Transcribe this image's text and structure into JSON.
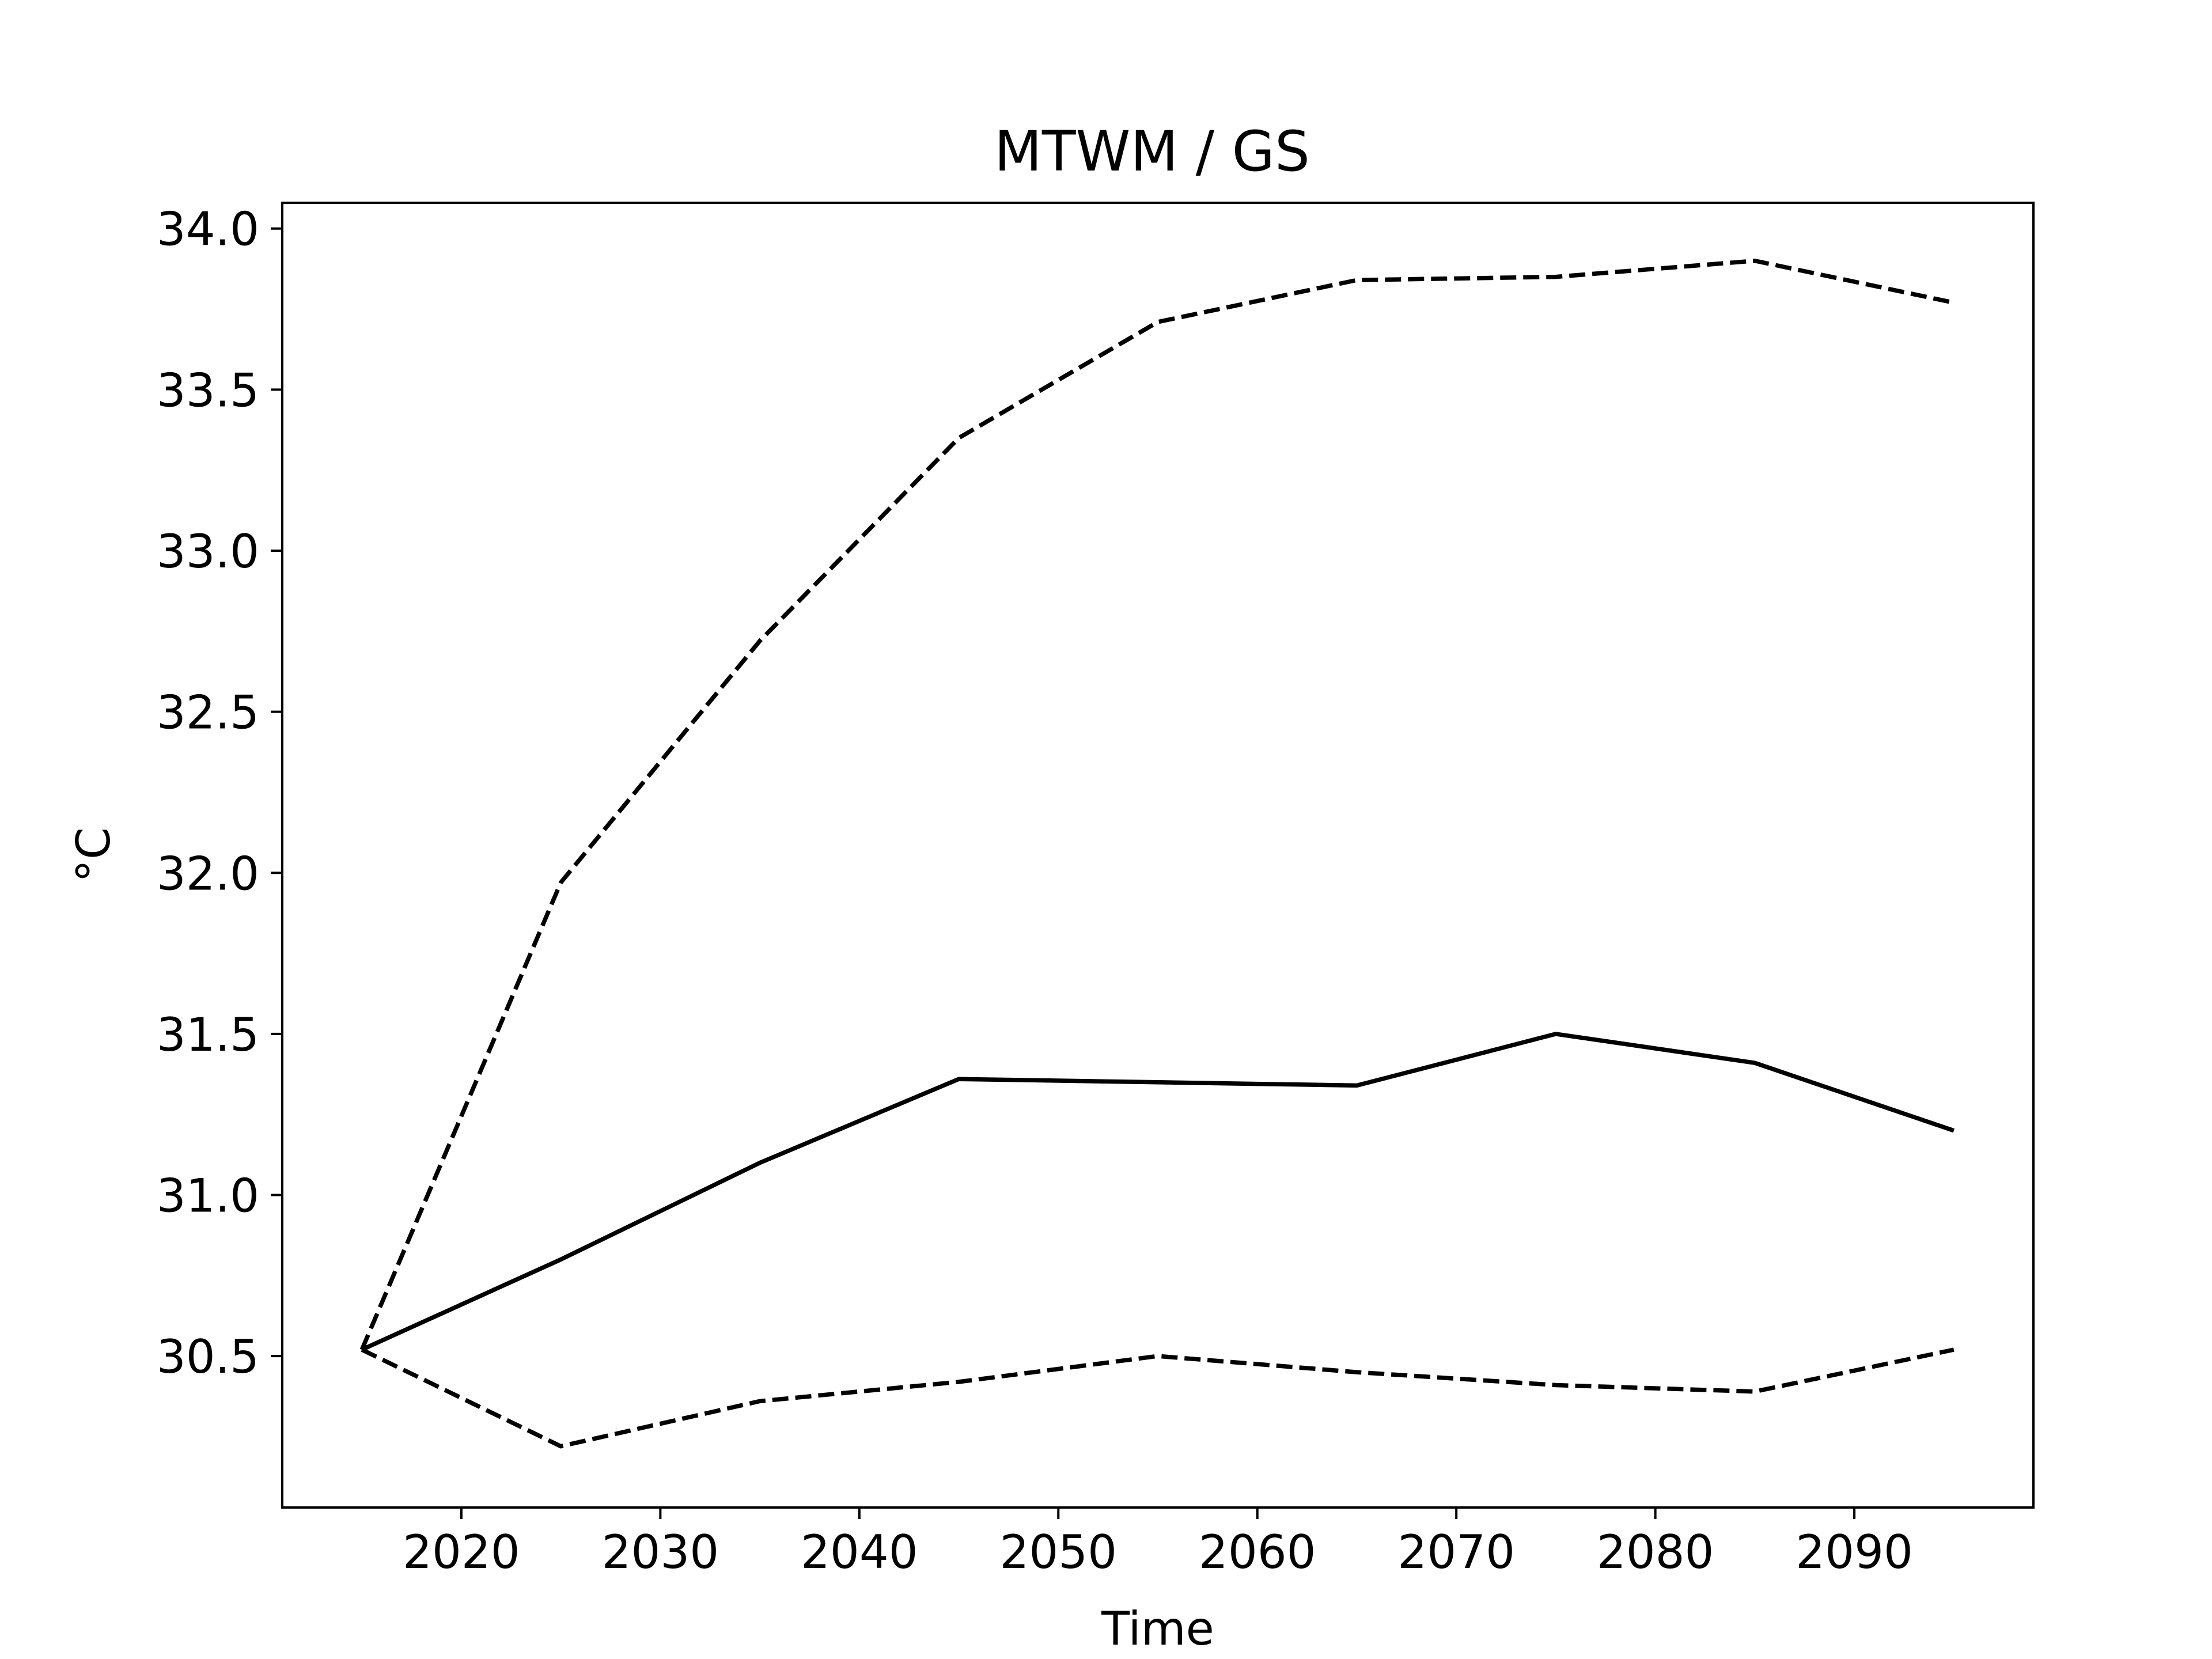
{
  "chart_data": {
    "type": "line",
    "title": "MTWM / GS",
    "xlabel": "Time",
    "ylabel": "°C",
    "xlim": [
      2011,
      2099
    ],
    "ylim": [
      30.03,
      34.08
    ],
    "x_ticks": [
      2020,
      2030,
      2040,
      2050,
      2060,
      2070,
      2080,
      2090
    ],
    "y_ticks": [
      30.5,
      31.0,
      31.5,
      32.0,
      32.5,
      33.0,
      33.5,
      34.0
    ],
    "x_tick_labels": [
      "2020",
      "2030",
      "2040",
      "2050",
      "2060",
      "2070",
      "2080",
      "2090"
    ],
    "y_tick_labels": [
      "30.5",
      "31.0",
      "31.5",
      "32.0",
      "32.5",
      "33.0",
      "33.5",
      "34.0"
    ],
    "grid": false,
    "x": [
      2015,
      2025,
      2035,
      2045,
      2055,
      2065,
      2075,
      2085,
      2095
    ],
    "series": [
      {
        "style": "solid",
        "color": "#000000",
        "values": [
          30.52,
          30.8,
          31.1,
          31.36,
          31.35,
          31.34,
          31.5,
          31.41,
          31.2
        ]
      },
      {
        "style": "dashed",
        "color": "#000000",
        "values": [
          30.52,
          31.97,
          32.72,
          33.35,
          33.71,
          33.84,
          33.85,
          33.9,
          33.77
        ]
      },
      {
        "style": "dashed",
        "color": "#000000",
        "values": [
          30.52,
          30.22,
          30.36,
          30.42,
          30.5,
          30.45,
          30.41,
          30.39,
          30.52
        ]
      }
    ]
  }
}
